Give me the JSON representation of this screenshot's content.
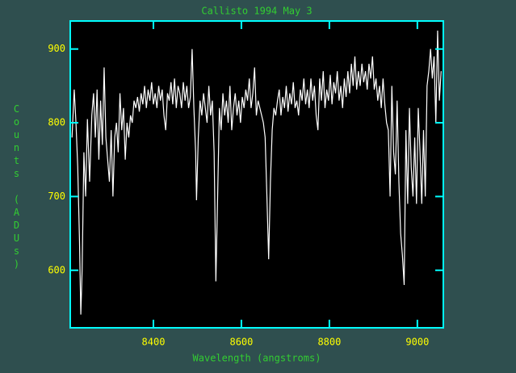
{
  "chart_data": {
    "type": "line",
    "title": "Callisto 1994 May 3",
    "x_label": "Wavelength (angstroms)",
    "y_label": "Counts (ADUs)",
    "xlim": [
      8211,
      9059
    ],
    "ylim": [
      522,
      938
    ],
    "xticks": [
      8400,
      8600,
      8800,
      9000
    ],
    "yticks": [
      600,
      700,
      800,
      900
    ],
    "color": "#ffffff",
    "x": [
      8215,
      8220,
      8224,
      8228,
      8232,
      8235,
      8238,
      8242,
      8246,
      8250,
      8255,
      8260,
      8264,
      8268,
      8272,
      8276,
      8280,
      8284,
      8288,
      8292,
      8296,
      8300,
      8304,
      8308,
      8312,
      8316,
      8320,
      8324,
      8328,
      8332,
      8336,
      8340,
      8344,
      8348,
      8352,
      8356,
      8360,
      8364,
      8368,
      8372,
      8376,
      8380,
      8384,
      8388,
      8392,
      8396,
      8400,
      8404,
      8408,
      8412,
      8416,
      8420,
      8424,
      8428,
      8432,
      8436,
      8440,
      8444,
      8448,
      8452,
      8456,
      8460,
      8464,
      8468,
      8472,
      8476,
      8480,
      8484,
      8488,
      8492,
      8496,
      8498,
      8502,
      8506,
      8510,
      8514,
      8518,
      8522,
      8526,
      8530,
      8534,
      8538,
      8542,
      8546,
      8550,
      8554,
      8558,
      8562,
      8566,
      8570,
      8574,
      8578,
      8582,
      8586,
      8590,
      8594,
      8598,
      8602,
      8606,
      8610,
      8614,
      8618,
      8622,
      8626,
      8630,
      8634,
      8638,
      8642,
      8646,
      8650,
      8654,
      8658,
      8662,
      8666,
      8670,
      8674,
      8678,
      8682,
      8686,
      8690,
      8694,
      8698,
      8702,
      8706,
      8710,
      8714,
      8718,
      8722,
      8726,
      8730,
      8734,
      8738,
      8742,
      8746,
      8750,
      8754,
      8758,
      8762,
      8766,
      8770,
      8774,
      8778,
      8782,
      8786,
      8790,
      8794,
      8798,
      8802,
      8806,
      8810,
      8814,
      8818,
      8822,
      8826,
      8830,
      8834,
      8838,
      8842,
      8846,
      8850,
      8854,
      8858,
      8862,
      8866,
      8870,
      8874,
      8878,
      8882,
      8886,
      8890,
      8894,
      8898,
      8902,
      8906,
      8910,
      8914,
      8918,
      8922,
      8926,
      8930,
      8934,
      8938,
      8942,
      8946,
      8950,
      8954,
      8958,
      8962,
      8966,
      8970,
      8974,
      8978,
      8982,
      8986,
      8990,
      8994,
      8998,
      9002,
      9006,
      9010,
      9014,
      9018,
      9022,
      9026,
      9030,
      9034,
      9038,
      9042,
      9046,
      9050,
      9054
    ],
    "values": [
      780,
      845,
      800,
      740,
      640,
      540,
      600,
      760,
      700,
      805,
      720,
      810,
      840,
      780,
      845,
      750,
      830,
      770,
      875,
      780,
      750,
      720,
      790,
      700,
      780,
      800,
      760,
      840,
      790,
      820,
      750,
      800,
      780,
      810,
      800,
      830,
      820,
      835,
      815,
      840,
      825,
      850,
      820,
      845,
      830,
      855,
      825,
      840,
      820,
      850,
      830,
      845,
      810,
      790,
      840,
      830,
      855,
      825,
      860,
      820,
      850,
      840,
      820,
      855,
      830,
      850,
      820,
      835,
      900,
      820,
      760,
      695,
      780,
      830,
      810,
      840,
      820,
      800,
      850,
      810,
      830,
      760,
      585,
      700,
      820,
      790,
      840,
      810,
      830,
      800,
      850,
      790,
      820,
      840,
      810,
      830,
      800,
      835,
      820,
      845,
      830,
      860,
      820,
      840,
      875,
      810,
      830,
      820,
      810,
      800,
      780,
      700,
      615,
      720,
      790,
      820,
      810,
      830,
      845,
      810,
      835,
      820,
      850,
      815,
      840,
      825,
      855,
      820,
      830,
      810,
      845,
      830,
      860,
      825,
      845,
      820,
      860,
      830,
      850,
      810,
      790,
      860,
      830,
      870,
      820,
      845,
      830,
      865,
      825,
      855,
      840,
      870,
      830,
      850,
      820,
      860,
      835,
      870,
      840,
      880,
      850,
      890,
      845,
      870,
      850,
      880,
      855,
      870,
      845,
      880,
      860,
      890,
      845,
      860,
      830,
      850,
      820,
      860,
      825,
      800,
      790,
      700,
      850,
      760,
      730,
      830,
      720,
      650,
      620,
      580,
      790,
      690,
      820,
      740,
      700,
      780,
      690,
      820,
      760,
      690,
      790,
      700,
      850,
      870,
      900,
      860,
      890,
      800,
      925,
      830,
      870
    ]
  }
}
